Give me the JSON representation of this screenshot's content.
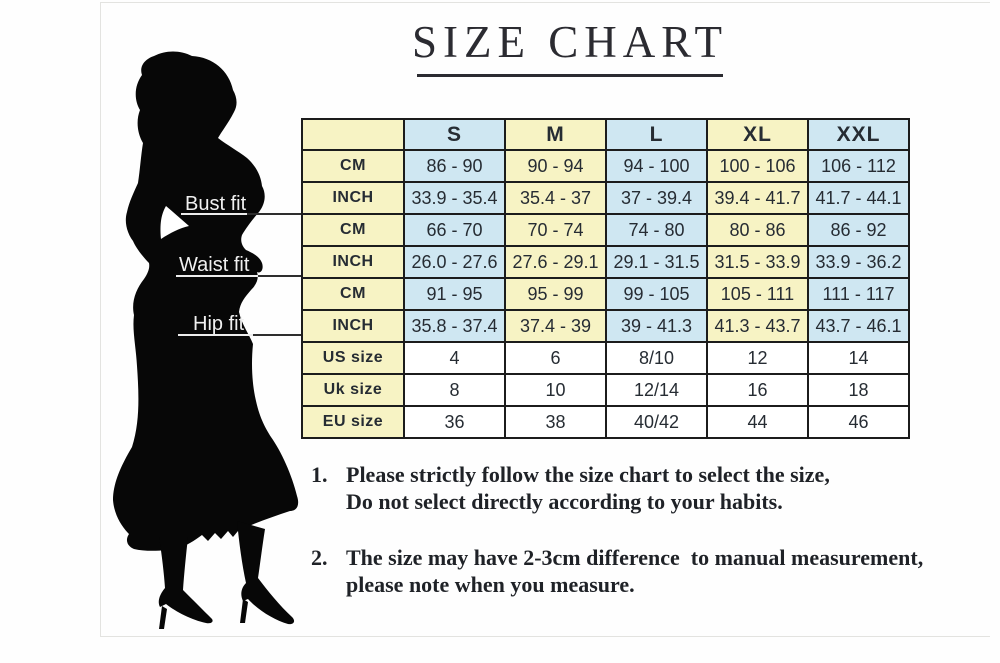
{
  "title": "SIZE CHART",
  "figure": {
    "silhouette": "woman-in-dress-silhouette",
    "bust_label": "Bust fit",
    "waist_label": "Waist fit",
    "hip_label": "Hip fit"
  },
  "chart_data": {
    "type": "table",
    "title": "SIZE CHART",
    "columns": [
      "",
      "S",
      "M",
      "L",
      "XL",
      "XXL"
    ],
    "rows": [
      {
        "label": "CM",
        "section": "bust",
        "values": [
          "86 - 90",
          "90 - 94",
          "94 - 100",
          "100 - 106",
          "106 - 112"
        ]
      },
      {
        "label": "INCH",
        "section": "bust",
        "values": [
          "33.9 - 35.4",
          "35.4 - 37",
          "37 - 39.4",
          "39.4 - 41.7",
          "41.7 - 44.1"
        ]
      },
      {
        "label": "CM",
        "section": "waist",
        "values": [
          "66 - 70",
          "70 - 74",
          "74 - 80",
          "80 - 86",
          "86 - 92"
        ]
      },
      {
        "label": "INCH",
        "section": "waist",
        "values": [
          "26.0 - 27.6",
          "27.6 - 29.1",
          "29.1 - 31.5",
          "31.5 - 33.9",
          "33.9 - 36.2"
        ]
      },
      {
        "label": "CM",
        "section": "hip",
        "values": [
          "91 - 95",
          "95 - 99",
          "99 - 105",
          "105 - 111",
          "111 - 117"
        ]
      },
      {
        "label": "INCH",
        "section": "hip",
        "values": [
          "35.8 - 37.4",
          "37.4 - 39",
          "39 - 41.3",
          "41.3 - 43.7",
          "43.7 - 46.1"
        ]
      },
      {
        "label": "US size",
        "section": "sizes",
        "values": [
          "4",
          "6",
          "8/10",
          "12",
          "14"
        ]
      },
      {
        "label": "Uk size",
        "section": "sizes",
        "values": [
          "8",
          "10",
          "12/14",
          "16",
          "18"
        ]
      },
      {
        "label": "EU size",
        "section": "sizes",
        "values": [
          "36",
          "38",
          "40/42",
          "44",
          "46"
        ]
      }
    ]
  },
  "notes": [
    {
      "number": "1.",
      "lines": [
        "Please strictly follow the size chart to select the size,",
        "Do not select directly according to your habits."
      ]
    },
    {
      "number": "2.",
      "lines": [
        "The size may have 2-3cm difference  to manual measurement,",
        "please note when you measure."
      ]
    }
  ],
  "colors": {
    "cell_cream": "#f7f3c4",
    "cell_blue": "#cfe7f2",
    "table_border": "#1c1c1c",
    "title_text": "#2b2b31",
    "silhouette": "#070707"
  }
}
